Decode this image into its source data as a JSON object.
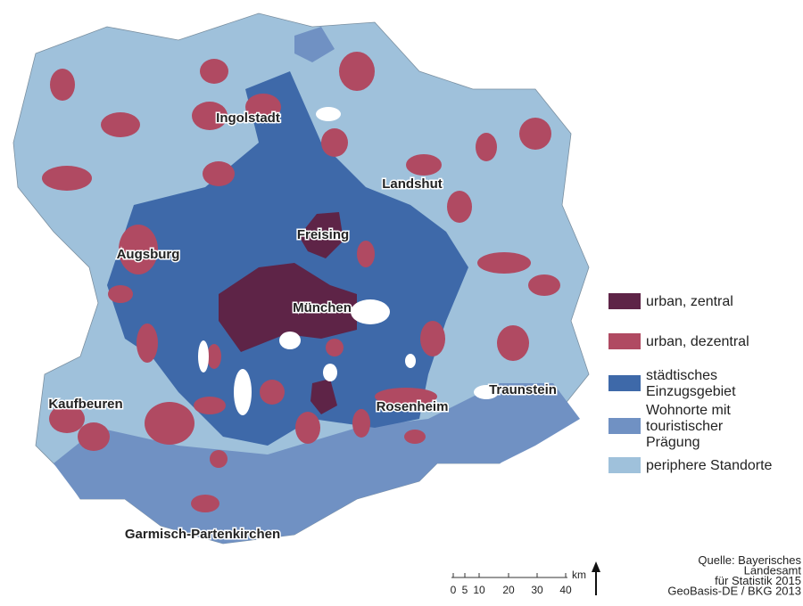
{
  "map": {
    "cities": [
      "Ingolstadt",
      "Landshut",
      "Freising",
      "Augsburg",
      "München",
      "Traunstein",
      "Kaufbeuren",
      "Rosenheim",
      "Garmisch-Partenkirchen"
    ],
    "legend": [
      {
        "label": [
          "urban, zentral"
        ],
        "color": "#5e2447"
      },
      {
        "label": [
          "urban, dezentral"
        ],
        "color": "#b04a62"
      },
      {
        "label": [
          "städtisches",
          "Einzugsgebiet"
        ],
        "color": "#3e69a9"
      },
      {
        "label": [
          "Wohnorte mit",
          "touristischer",
          "Prägung"
        ],
        "color": "#7091c3"
      },
      {
        "label": [
          "periphere Standorte"
        ],
        "color": "#9fc1db"
      }
    ],
    "scale": {
      "ticks": [
        "0",
        "5",
        "10",
        "20",
        "30",
        "40"
      ],
      "unit": "km"
    },
    "source": [
      "Quelle: Bayerisches",
      "Landesamt",
      "für Statistik 2015",
      "GeoBasis-DE / BKG 2013"
    ]
  }
}
